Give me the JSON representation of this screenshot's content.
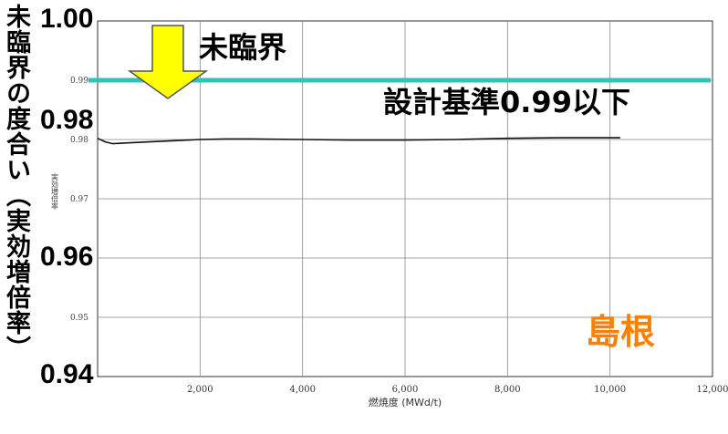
{
  "chart_data": {
    "type": "line",
    "ylabel": "未臨界の度合い（実効増倍率）",
    "inner_ylabel": "実効増倍率",
    "xlabel": "燃焼度 (MWd/t)",
    "xlim": [
      0,
      12000
    ],
    "ylim": [
      0.94,
      1.0
    ],
    "overlay_yticks": [
      "1.00",
      "0.98",
      "0.96",
      "0.94"
    ],
    "inner_yticks": [
      "0.99",
      "0.98",
      "0.97",
      "0.95"
    ],
    "xticks": [
      "2,000",
      "4,000",
      "6,000",
      "8,000",
      "10,000",
      "12,000"
    ],
    "series": [
      {
        "x": [
          0,
          150,
          300,
          500,
          1000,
          1500,
          2000,
          2500,
          3000,
          4000,
          5000,
          6000,
          7000,
          8000,
          9000,
          10000,
          10200
        ],
        "y": [
          0.9802,
          0.9796,
          0.9793,
          0.9794,
          0.9796,
          0.9798,
          0.98,
          0.9801,
          0.9801,
          0.98,
          0.9799,
          0.9799,
          0.98,
          0.9802,
          0.9803,
          0.9803,
          0.9803
        ]
      }
    ],
    "reference_line": {
      "y": 0.99,
      "label": "設計基準0.99以下",
      "color": "#2ec4b6"
    },
    "grid": true
  },
  "annotations": {
    "arrow_label": "未臨界",
    "plant": "島根",
    "plant_color": "#ff7f00",
    "arrow_color": "#ffff00"
  }
}
